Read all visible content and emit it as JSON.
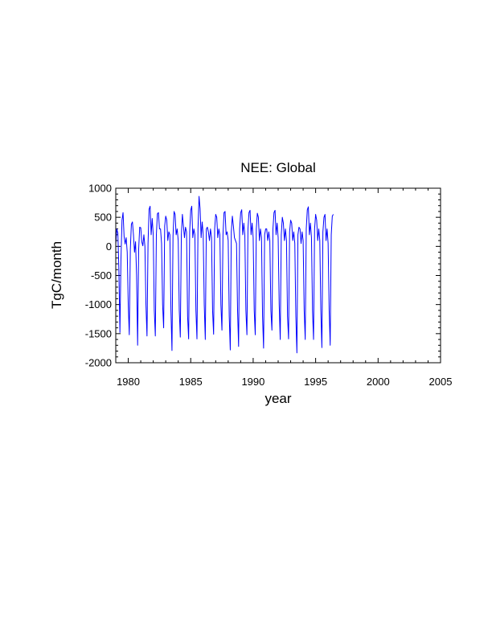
{
  "chart_data": {
    "type": "line",
    "title": "NEE: Global",
    "xlabel": "year",
    "ylabel": "TgC/month",
    "xlim": [
      1979.0,
      2005.0
    ],
    "ylim": [
      -2000,
      1000
    ],
    "x_ticks": [
      1980,
      1985,
      1990,
      1995,
      2000,
      2005
    ],
    "y_ticks": [
      1000,
      500,
      0,
      -500,
      -1000,
      -1500,
      -2000
    ],
    "x_tick_labels": [
      "1980",
      "1985",
      "1990",
      "1995",
      "2000",
      "2005"
    ],
    "y_tick_labels": [
      "1000",
      "500",
      "0",
      "-500",
      "-1000",
      "-1500",
      "-2000"
    ],
    "grid": false,
    "series": [
      {
        "color": "#0000ff",
        "x_start_year": 1979,
        "interval": "monthly",
        "values": [
          40,
          300,
          230,
          -400,
          -1480,
          -220,
          450,
          580,
          170,
          40,
          150,
          -100,
          -1000,
          -1520,
          -50,
          380,
          420,
          200,
          -100,
          80,
          -500,
          -1700,
          -50,
          330,
          320,
          80,
          10,
          200,
          0,
          -1000,
          -1540,
          50,
          640,
          690,
          200,
          480,
          200,
          -1100,
          -1540,
          200,
          560,
          580,
          300,
          300,
          50,
          -1000,
          -1400,
          350,
          520,
          450,
          100,
          250,
          200,
          -1100,
          -1790,
          180,
          600,
          550,
          200,
          300,
          100,
          -1100,
          -1560,
          200,
          550,
          350,
          150,
          330,
          250,
          -1200,
          -1590,
          250,
          620,
          690,
          150,
          300,
          200,
          -1100,
          -1590,
          300,
          860,
          650,
          150,
          420,
          200,
          -1000,
          -1600,
          300,
          330,
          250,
          100,
          300,
          150,
          -1100,
          -1510,
          300,
          550,
          500,
          150,
          300,
          200,
          -1000,
          -1440,
          200,
          580,
          600,
          200,
          250,
          100,
          -1200,
          -1780,
          250,
          520,
          350,
          150,
          100,
          50,
          -1100,
          -1720,
          300,
          580,
          630,
          200,
          400,
          200,
          -1100,
          -1520,
          300,
          580,
          620,
          200,
          400,
          150,
          -1100,
          -1520,
          300,
          570,
          500,
          100,
          300,
          150,
          -1200,
          -1750,
          200,
          300,
          300,
          100,
          250,
          100,
          -1100,
          -1440,
          300,
          580,
          620,
          200,
          400,
          150,
          -1000,
          -1600,
          200,
          500,
          400,
          100,
          300,
          100,
          -1200,
          -1590,
          250,
          450,
          400,
          100,
          250,
          50,
          -1200,
          -1830,
          200,
          330,
          300,
          50,
          250,
          100,
          -1100,
          -1600,
          300,
          630,
          680,
          200,
          400,
          150,
          -1100,
          -1600,
          300,
          550,
          450,
          100,
          300,
          100,
          -1100,
          -1740,
          250,
          500,
          550,
          100,
          300,
          50,
          -1100,
          -1700,
          200,
          520,
          550
        ]
      }
    ]
  }
}
